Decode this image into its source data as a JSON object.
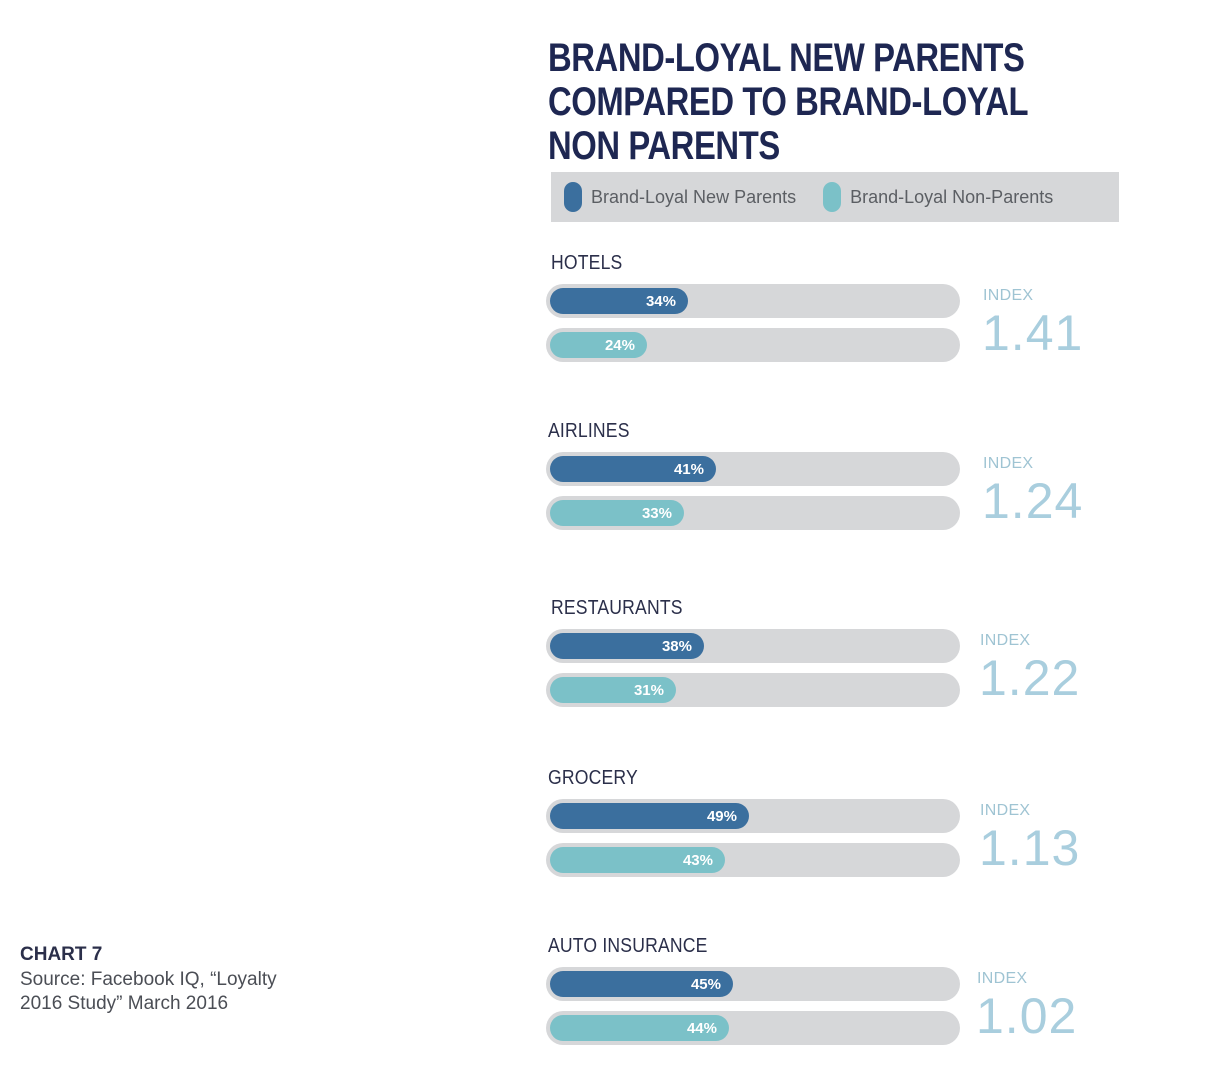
{
  "title": "BRAND-LOYAL NEW PARENTS COMPARED TO BRAND-LOYAL NON PARENTS",
  "legend": {
    "parents_label": "Brand-Loyal New Parents",
    "nonparents_label": "Brand-Loyal Non-Parents"
  },
  "colors": {
    "parents": "#3b6f9e",
    "nonparents": "#7bc1c8",
    "track": "#d6d7d9",
    "title": "#1e2752"
  },
  "source": {
    "title": "CHART 7",
    "text": "Source: Facebook IQ, “Loyalty 2016 Study” March 2016"
  },
  "chart_data": {
    "type": "bar",
    "title": "BRAND-LOYAL NEW PARENTS COMPARED TO BRAND-LOYAL NON PARENTS",
    "categories": [
      "HOTELS",
      "AIRLINES",
      "RESTAURANTS",
      "GROCERY",
      "AUTO INSURANCE"
    ],
    "series": [
      {
        "name": "Brand-Loyal New Parents",
        "values": [
          34,
          41,
          38,
          49,
          45
        ],
        "labels": [
          "34%",
          "41%",
          "38%",
          "49%",
          "45%"
        ]
      },
      {
        "name": "Brand-Loyal Non-Parents",
        "values": [
          24,
          33,
          31,
          43,
          44
        ],
        "labels": [
          "24%",
          "33%",
          "31%",
          "43%",
          "44%"
        ]
      }
    ],
    "index_caption": "INDEX",
    "index_values": [
      "1.41",
      "1.24",
      "1.22",
      "1.13",
      "1.02"
    ],
    "xlim": [
      0,
      100
    ],
    "legend_position": "top"
  }
}
